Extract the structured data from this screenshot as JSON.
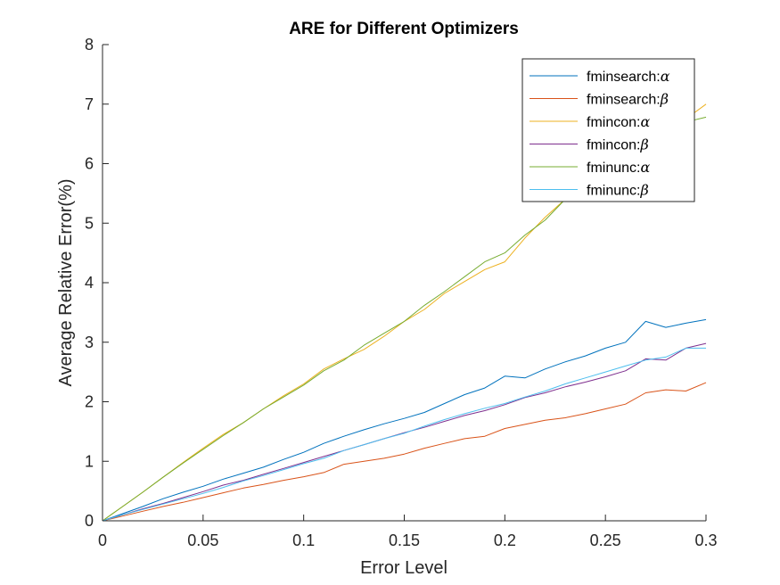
{
  "chart_data": {
    "type": "line",
    "title": "ARE for Different Optimizers",
    "xlabel": "Error Level",
    "ylabel": "Average Relative Error(%)",
    "xlim": [
      0,
      0.3
    ],
    "ylim": [
      0,
      8
    ],
    "xticks": [
      0,
      0.05,
      0.1,
      0.15,
      0.2,
      0.25,
      0.3
    ],
    "xtick_labels": [
      "0",
      "0.05",
      "0.1",
      "0.15",
      "0.2",
      "0.25",
      "0.3"
    ],
    "yticks": [
      0,
      1,
      2,
      3,
      4,
      5,
      6,
      7,
      8
    ],
    "ytick_labels": [
      "0",
      "1",
      "2",
      "3",
      "4",
      "5",
      "6",
      "7",
      "8"
    ],
    "grid": false,
    "legend_position": "top-right",
    "x": [
      0,
      0.01,
      0.02,
      0.03,
      0.04,
      0.05,
      0.06,
      0.07,
      0.08,
      0.09,
      0.1,
      0.11,
      0.12,
      0.13,
      0.14,
      0.15,
      0.16,
      0.17,
      0.18,
      0.19,
      0.2,
      0.21,
      0.22,
      0.23,
      0.24,
      0.25,
      0.26,
      0.27,
      0.28,
      0.29,
      0.3
    ],
    "series": [
      {
        "name": "fminsearch:",
        "symbol": "α",
        "color": "#0072BD",
        "values": [
          0,
          0.12,
          0.24,
          0.37,
          0.48,
          0.58,
          0.7,
          0.8,
          0.9,
          1.03,
          1.15,
          1.3,
          1.42,
          1.53,
          1.63,
          1.72,
          1.82,
          1.97,
          2.12,
          2.23,
          2.43,
          2.4,
          2.55,
          2.67,
          2.77,
          2.9,
          3.0,
          3.35,
          3.25,
          3.32,
          3.38
        ]
      },
      {
        "name": "fminsearch:",
        "symbol": "β",
        "color": "#D95319",
        "values": [
          0,
          0.08,
          0.16,
          0.24,
          0.31,
          0.39,
          0.47,
          0.55,
          0.61,
          0.68,
          0.74,
          0.81,
          0.95,
          1.0,
          1.05,
          1.12,
          1.22,
          1.3,
          1.38,
          1.42,
          1.55,
          1.62,
          1.69,
          1.73,
          1.8,
          1.88,
          1.96,
          2.15,
          2.2,
          2.18,
          2.32
        ]
      },
      {
        "name": "fmincon:",
        "symbol": "α",
        "color": "#EDB120",
        "values": [
          0,
          0.24,
          0.48,
          0.73,
          0.98,
          1.22,
          1.45,
          1.65,
          1.88,
          2.1,
          2.3,
          2.55,
          2.72,
          2.88,
          3.1,
          3.35,
          3.55,
          3.82,
          4.02,
          4.22,
          4.35,
          4.75,
          5.1,
          5.4,
          5.65,
          5.95,
          6.15,
          6.4,
          6.6,
          6.75,
          7.0
        ]
      },
      {
        "name": "fmincon:",
        "symbol": "β",
        "color": "#7E2F8E",
        "values": [
          0,
          0.1,
          0.2,
          0.29,
          0.39,
          0.49,
          0.6,
          0.68,
          0.78,
          0.88,
          0.98,
          1.08,
          1.18,
          1.28,
          1.38,
          1.48,
          1.57,
          1.67,
          1.77,
          1.85,
          1.95,
          2.07,
          2.15,
          2.25,
          2.33,
          2.42,
          2.52,
          2.72,
          2.7,
          2.9,
          2.98
        ]
      },
      {
        "name": "fminunc:",
        "symbol": "α",
        "color": "#77AC30",
        "values": [
          0,
          0.24,
          0.48,
          0.73,
          0.97,
          1.2,
          1.43,
          1.65,
          1.88,
          2.08,
          2.28,
          2.52,
          2.7,
          2.95,
          3.15,
          3.35,
          3.62,
          3.85,
          4.1,
          4.35,
          4.5,
          4.8,
          5.05,
          5.4,
          5.7,
          5.95,
          6.15,
          6.4,
          6.55,
          6.7,
          6.78
        ]
      },
      {
        "name": "fminunc:",
        "symbol": "β",
        "color": "#4DBEEE",
        "values": [
          0,
          0.1,
          0.19,
          0.28,
          0.37,
          0.46,
          0.56,
          0.67,
          0.76,
          0.86,
          0.96,
          1.05,
          1.18,
          1.28,
          1.38,
          1.47,
          1.59,
          1.7,
          1.8,
          1.89,
          1.97,
          2.08,
          2.18,
          2.3,
          2.4,
          2.5,
          2.6,
          2.7,
          2.75,
          2.9,
          2.9
        ]
      }
    ]
  }
}
